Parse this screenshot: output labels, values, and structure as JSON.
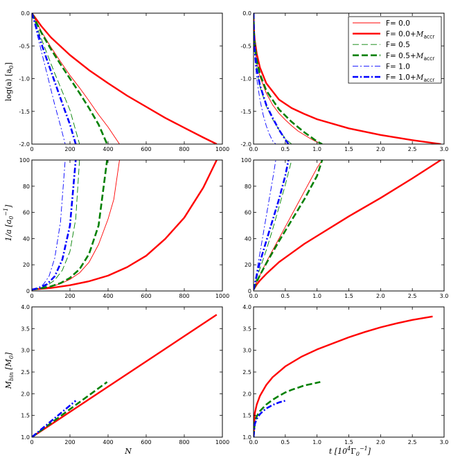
{
  "chart_data": [
    {
      "type": "line",
      "panel": "top-left",
      "xlabel": "",
      "ylabel": "log(a) [a_0]",
      "xlim": [
        0,
        1000
      ],
      "ylim": [
        -2.0,
        0.0
      ],
      "xticks": [
        "0",
        "200",
        "400",
        "600",
        "800",
        "1000"
      ],
      "yticks": [
        "-2.0",
        "-1.5",
        "-1.0",
        "-0.5",
        "0.0"
      ],
      "series": [
        {
          "name": "F= 0.0",
          "style": "thin-solid",
          "color": "#ff0000",
          "x": [
            0,
            50,
            100,
            150,
            200,
            250,
            300,
            350,
            400,
            460
          ],
          "y": [
            0,
            -0.28,
            -0.52,
            -0.74,
            -0.95,
            -1.14,
            -1.34,
            -1.55,
            -1.74,
            -2.0
          ]
        },
        {
          "name": "F= 0.0+M_accr",
          "style": "thick-solid",
          "color": "#ff0000",
          "x": [
            0,
            50,
            100,
            200,
            300,
            400,
            500,
            600,
            700,
            800,
            900,
            970
          ],
          "y": [
            0,
            -0.2,
            -0.37,
            -0.64,
            -0.87,
            -1.07,
            -1.26,
            -1.43,
            -1.6,
            -1.75,
            -1.9,
            -2.0
          ]
        },
        {
          "name": "F= 0.5",
          "style": "thin-dash",
          "color": "#008000",
          "x": [
            0,
            40,
            80,
            120,
            160,
            200,
            250
          ],
          "y": [
            0,
            -0.32,
            -0.62,
            -0.92,
            -1.2,
            -1.48,
            -2.0
          ]
        },
        {
          "name": "F= 0.5+M_accr",
          "style": "thick-dash",
          "color": "#008000",
          "x": [
            0,
            50,
            100,
            150,
            200,
            250,
            300,
            350,
            395
          ],
          "y": [
            0,
            -0.3,
            -0.55,
            -0.78,
            -1.0,
            -1.22,
            -1.45,
            -1.7,
            -2.0
          ]
        },
        {
          "name": "F= 1.0",
          "style": "thin-dashdot",
          "color": "#0000ff",
          "x": [
            0,
            30,
            60,
            90,
            120,
            150,
            175
          ],
          "y": [
            0,
            -0.35,
            -0.7,
            -1.05,
            -1.4,
            -1.72,
            -2.0
          ]
        },
        {
          "name": "F= 1.0+M_accr",
          "style": "thick-dashdot",
          "color": "#0000ff",
          "x": [
            0,
            40,
            80,
            120,
            160,
            200,
            230
          ],
          "y": [
            0,
            -0.38,
            -0.72,
            -1.05,
            -1.38,
            -1.7,
            -2.0
          ]
        }
      ]
    },
    {
      "type": "line",
      "panel": "top-right",
      "xlabel": "",
      "ylabel": "",
      "xlim": [
        0,
        3.0
      ],
      "ylim": [
        -2.0,
        0.0
      ],
      "xticks": [
        "0.0",
        "0.5",
        "1.0",
        "1.5",
        "2.0",
        "2.5",
        "3.0"
      ],
      "yticks": [
        "-2.0",
        "-1.5",
        "-1.0",
        "-0.5",
        "0.0"
      ],
      "legend": "top-right",
      "series": [
        {
          "name": "F= 0.0",
          "style": "thin-solid",
          "color": "#ff0000",
          "x": [
            0,
            0.005,
            0.01,
            0.02,
            0.05,
            0.1,
            0.2,
            0.3,
            0.4,
            0.5,
            0.6,
            0.7,
            0.8,
            0.9,
            1.0,
            1.08
          ],
          "y": [
            0,
            -0.25,
            -0.35,
            -0.5,
            -0.75,
            -0.97,
            -1.22,
            -1.4,
            -1.53,
            -1.63,
            -1.72,
            -1.8,
            -1.86,
            -1.92,
            -1.97,
            -2.0
          ]
        },
        {
          "name": "F= 0.0+M_accr",
          "style": "thick-solid",
          "color": "#ff0000",
          "x": [
            0,
            0.005,
            0.01,
            0.02,
            0.05,
            0.1,
            0.2,
            0.4,
            0.6,
            0.8,
            1.0,
            1.5,
            2.0,
            2.5,
            2.95
          ],
          "y": [
            0,
            -0.22,
            -0.3,
            -0.42,
            -0.62,
            -0.83,
            -1.07,
            -1.32,
            -1.45,
            -1.54,
            -1.62,
            -1.76,
            -1.86,
            -1.94,
            -2.0
          ]
        },
        {
          "name": "F= 0.5",
          "style": "thin-dash",
          "color": "#008000",
          "x": [
            0,
            0.005,
            0.01,
            0.02,
            0.05,
            0.1,
            0.2,
            0.3,
            0.4,
            0.5,
            0.6
          ],
          "y": [
            0,
            -0.3,
            -0.42,
            -0.58,
            -0.88,
            -1.12,
            -1.42,
            -1.62,
            -1.78,
            -1.92,
            -2.0
          ]
        },
        {
          "name": "F= 0.5+M_accr",
          "style": "thick-dash",
          "color": "#008000",
          "x": [
            0,
            0.005,
            0.01,
            0.02,
            0.05,
            0.1,
            0.2,
            0.4,
            0.6,
            0.8,
            1.0,
            1.08
          ],
          "y": [
            0,
            -0.25,
            -0.35,
            -0.48,
            -0.72,
            -0.93,
            -1.18,
            -1.47,
            -1.66,
            -1.82,
            -1.96,
            -2.0
          ]
        },
        {
          "name": "F= 1.0",
          "style": "thin-dashdot",
          "color": "#0000ff",
          "x": [
            0,
            0.005,
            0.01,
            0.02,
            0.05,
            0.1,
            0.15,
            0.2,
            0.25,
            0.3,
            0.35
          ],
          "y": [
            0,
            -0.35,
            -0.5,
            -0.7,
            -1.0,
            -1.32,
            -1.55,
            -1.72,
            -1.85,
            -1.95,
            -2.0
          ]
        },
        {
          "name": "F= 1.0+M_accr",
          "style": "thick-dashdot",
          "color": "#0000ff",
          "x": [
            0,
            0.005,
            0.01,
            0.02,
            0.05,
            0.1,
            0.2,
            0.3,
            0.4,
            0.5,
            0.55
          ],
          "y": [
            0,
            -0.3,
            -0.42,
            -0.58,
            -0.85,
            -1.1,
            -1.4,
            -1.6,
            -1.78,
            -1.93,
            -2.0
          ]
        }
      ]
    },
    {
      "type": "line",
      "panel": "middle-left",
      "xlabel": "",
      "ylabel": "1/a [a_0^-1]",
      "xlim": [
        0,
        1000
      ],
      "ylim": [
        0,
        100
      ],
      "xticks": [
        "0",
        "200",
        "400",
        "600",
        "800",
        "1000"
      ],
      "yticks": [
        "0",
        "20",
        "40",
        "60",
        "80",
        "100"
      ],
      "series": [
        {
          "name": "F= 0.0",
          "style": "thin-solid",
          "color": "#ff0000",
          "x": [
            0,
            50,
            100,
            150,
            200,
            250,
            300,
            350,
            400,
            430,
            460
          ],
          "y": [
            1,
            1.9,
            3.3,
            5.5,
            8.9,
            13.8,
            21.9,
            35.5,
            55,
            70,
            100
          ]
        },
        {
          "name": "F= 0.0+M_accr",
          "style": "thick-solid",
          "color": "#ff0000",
          "x": [
            0,
            100,
            200,
            300,
            400,
            500,
            600,
            700,
            800,
            900,
            970
          ],
          "y": [
            1,
            2.3,
            4.4,
            7.4,
            11.7,
            18.2,
            26.9,
            39.8,
            56,
            79,
            100
          ]
        },
        {
          "name": "F= 0.5",
          "style": "thin-dash",
          "color": "#008000",
          "x": [
            0,
            40,
            80,
            120,
            160,
            200,
            230,
            250
          ],
          "y": [
            1,
            2.1,
            4.2,
            8.3,
            15.8,
            30.2,
            55,
            100
          ]
        },
        {
          "name": "F= 0.5+M_accr",
          "style": "thick-dash",
          "color": "#008000",
          "x": [
            0,
            50,
            100,
            150,
            200,
            250,
            300,
            350,
            395
          ],
          "y": [
            1,
            2,
            3.5,
            6,
            10,
            16.6,
            28.2,
            50,
            100
          ]
        },
        {
          "name": "F= 1.0",
          "style": "thin-dashdot",
          "color": "#0000ff",
          "x": [
            0,
            30,
            60,
            90,
            120,
            150,
            175
          ],
          "y": [
            1,
            2.2,
            5,
            11.2,
            25.1,
            52.5,
            100
          ]
        },
        {
          "name": "F= 1.0+M_accr",
          "style": "thick-dashdot",
          "color": "#0000ff",
          "x": [
            0,
            40,
            80,
            120,
            160,
            200,
            230
          ],
          "y": [
            1,
            2.4,
            5.2,
            11.2,
            24,
            50,
            100
          ]
        }
      ]
    },
    {
      "type": "line",
      "panel": "middle-right",
      "xlabel": "",
      "ylabel": "",
      "xlim": [
        0,
        3.0
      ],
      "ylim": [
        0,
        100
      ],
      "xticks": [
        "0.0",
        "0.5",
        "1.0",
        "1.5",
        "2.0",
        "2.5",
        "3.0"
      ],
      "yticks": [
        "0",
        "20",
        "40",
        "60",
        "80",
        "100"
      ],
      "series": [
        {
          "name": "F= 0.0",
          "style": "thin-solid",
          "color": "#ff0000",
          "x": [
            0,
            0.05,
            0.1,
            0.2,
            0.3,
            0.4,
            0.5,
            0.6,
            0.7,
            0.8,
            0.9,
            1.0,
            1.08
          ],
          "y": [
            1,
            7,
            12,
            22,
            31,
            40,
            49,
            58,
            67,
            76,
            85,
            94,
            100
          ]
        },
        {
          "name": "F= 0.0+M_accr",
          "style": "thick-solid",
          "color": "#ff0000",
          "x": [
            0,
            0.05,
            0.1,
            0.2,
            0.4,
            0.6,
            0.8,
            1.0,
            1.5,
            2.0,
            2.5,
            2.95
          ],
          "y": [
            1,
            5,
            8,
            13,
            22,
            29,
            36,
            42,
            57,
            71,
            86,
            100
          ]
        },
        {
          "name": "F= 0.5",
          "style": "thin-dash",
          "color": "#008000",
          "x": [
            0,
            0.05,
            0.1,
            0.2,
            0.3,
            0.4,
            0.5,
            0.6
          ],
          "y": [
            1,
            10,
            17,
            31,
            47,
            64,
            81,
            100
          ]
        },
        {
          "name": "F= 0.5+M_accr",
          "style": "thick-dash",
          "color": "#008000",
          "x": [
            0,
            0.05,
            0.1,
            0.2,
            0.4,
            0.6,
            0.8,
            1.0,
            1.08
          ],
          "y": [
            1,
            7,
            12,
            21,
            38,
            54,
            70,
            88,
            100
          ]
        },
        {
          "name": "F= 1.0",
          "style": "thin-dashdot",
          "color": "#0000ff",
          "x": [
            0,
            0.05,
            0.1,
            0.15,
            0.2,
            0.25,
            0.3,
            0.35
          ],
          "y": [
            1,
            15,
            29,
            43,
            57,
            71,
            85,
            100
          ]
        },
        {
          "name": "F= 1.0+M_accr",
          "style": "thick-dashdot",
          "color": "#0000ff",
          "x": [
            0,
            0.05,
            0.1,
            0.2,
            0.3,
            0.4,
            0.5,
            0.55
          ],
          "y": [
            1,
            12,
            22,
            38,
            54,
            70,
            88,
            100
          ]
        }
      ]
    },
    {
      "type": "line",
      "panel": "bottom-left",
      "xlabel": "N",
      "ylabel": "M_bin [M_0]",
      "xlim": [
        0,
        1000
      ],
      "ylim": [
        1.0,
        4.0
      ],
      "xticks": [
        "0",
        "200",
        "400",
        "600",
        "800",
        "1000"
      ],
      "yticks": [
        "1.0",
        "1.5",
        "2.0",
        "2.5",
        "3.0",
        "3.5",
        "4.0"
      ],
      "series": [
        {
          "name": "F= 0.0+M_accr",
          "style": "thick-solid",
          "color": "#ff0000",
          "x": [
            0,
            970
          ],
          "y": [
            1.0,
            3.82
          ]
        },
        {
          "name": "F= 0.5+M_accr",
          "style": "thick-dash",
          "color": "#008000",
          "x": [
            0,
            395
          ],
          "y": [
            1.0,
            2.27
          ]
        },
        {
          "name": "F= 1.0+M_accr",
          "style": "thick-dashdot",
          "color": "#0000ff",
          "x": [
            0,
            230
          ],
          "y": [
            1.0,
            1.84
          ]
        }
      ]
    },
    {
      "type": "line",
      "panel": "bottom-right",
      "xlabel": "t [10^4 Γ_0^-1]",
      "ylabel": "",
      "xlim": [
        0,
        3.0
      ],
      "ylim": [
        1.0,
        4.0
      ],
      "xticks": [
        "0.0",
        "0.5",
        "1.0",
        "1.5",
        "2.0",
        "2.5",
        "3.0"
      ],
      "yticks": [
        "1.0",
        "1.5",
        "2.0",
        "2.5",
        "3.0",
        "3.5",
        "4.0"
      ],
      "series": [
        {
          "name": "F= 0.0+M_accr",
          "style": "thick-solid",
          "color": "#ff0000",
          "x": [
            0,
            0.02,
            0.05,
            0.1,
            0.2,
            0.3,
            0.5,
            0.75,
            1.0,
            1.25,
            1.5,
            1.75,
            2.0,
            2.25,
            2.5,
            2.82
          ],
          "y": [
            1.0,
            1.55,
            1.75,
            1.95,
            2.2,
            2.38,
            2.63,
            2.85,
            3.02,
            3.16,
            3.3,
            3.42,
            3.53,
            3.62,
            3.7,
            3.78
          ]
        },
        {
          "name": "F= 0.5+M_accr",
          "style": "thick-dash",
          "color": "#008000",
          "x": [
            0,
            0.02,
            0.05,
            0.1,
            0.2,
            0.3,
            0.4,
            0.5,
            0.6,
            0.7,
            0.8,
            0.9,
            1.05
          ],
          "y": [
            1.0,
            1.35,
            1.48,
            1.6,
            1.75,
            1.86,
            1.95,
            2.03,
            2.09,
            2.14,
            2.19,
            2.22,
            2.27
          ]
        },
        {
          "name": "F= 1.0+M_accr",
          "style": "thick-dashdot",
          "color": "#0000ff",
          "x": [
            0,
            0.02,
            0.05,
            0.1,
            0.15,
            0.2,
            0.25,
            0.3,
            0.35,
            0.4,
            0.45,
            0.5
          ],
          "y": [
            1.0,
            1.3,
            1.42,
            1.53,
            1.6,
            1.66,
            1.7,
            1.74,
            1.77,
            1.8,
            1.82,
            1.84
          ]
        }
      ]
    }
  ],
  "labels": {
    "ylabel_top": "log(a) [a",
    "ylabel_top_sub": "0",
    "ylabel_top_end": "]",
    "ylabel_mid": "1/a [a",
    "ylabel_mid_sub": "0",
    "ylabel_mid_sup": "−1",
    "ylabel_mid_end": "]",
    "ylabel_bot": "M",
    "ylabel_bot_sub": "bin",
    "ylabel_bot_mid": " [M",
    "ylabel_bot_sub2": "0",
    "ylabel_bot_end": "]",
    "xlabel_left": "N",
    "xlabel_right": "t [10",
    "xlabel_right_sup": "4",
    "xlabel_right_gamma": "Γ",
    "xlabel_right_sub": "0",
    "xlabel_right_sup2": "−1",
    "xlabel_right_end": "]"
  },
  "legend": [
    {
      "text": "F= 0.0",
      "acc": "",
      "style": "thin-solid",
      "color": "#ff0000"
    },
    {
      "text": "F= 0.0+",
      "acc": "accr",
      "style": "thick-solid",
      "color": "#ff0000"
    },
    {
      "text": "F= 0.5",
      "acc": "",
      "style": "thin-dash",
      "color": "#008000"
    },
    {
      "text": "F= 0.5+",
      "acc": "accr",
      "style": "thick-dash",
      "color": "#008000"
    },
    {
      "text": "F= 1.0",
      "acc": "",
      "style": "thin-dashdot",
      "color": "#0000ff"
    },
    {
      "text": "F= 1.0+",
      "acc": "accr",
      "style": "thick-dashdot",
      "color": "#0000ff"
    }
  ]
}
